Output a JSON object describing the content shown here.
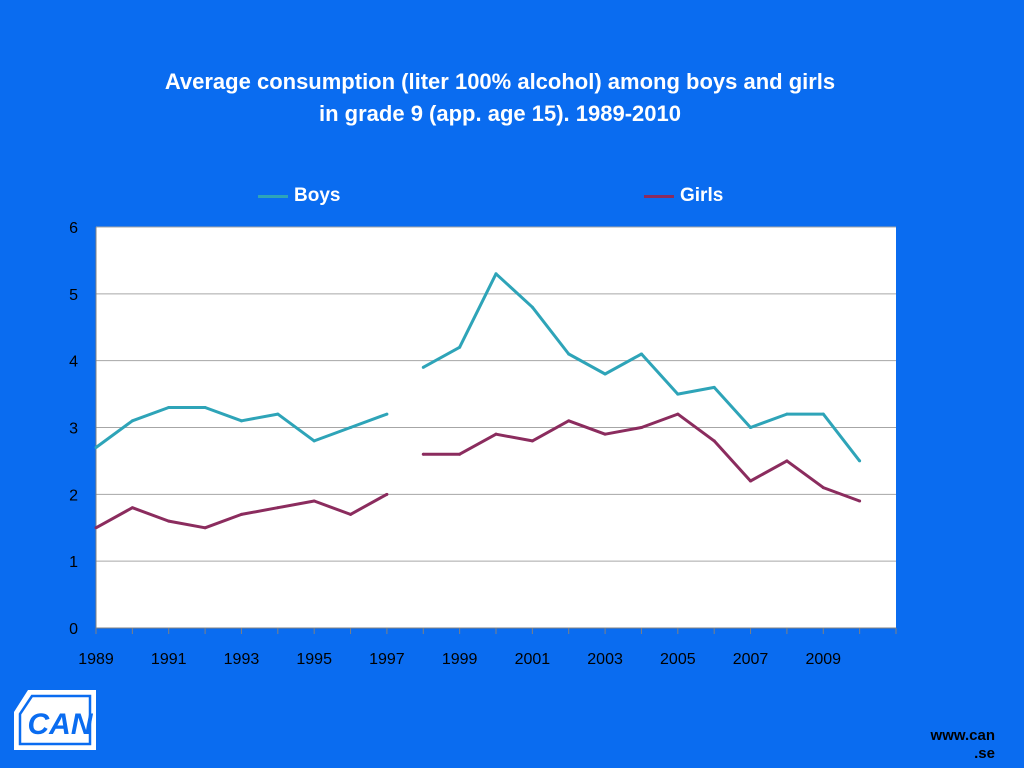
{
  "title": {
    "line1": "Average consumption (liter 100% alcohol) among boys and girls",
    "line2": "in grade 9 (app. age 15). 1989-2010"
  },
  "footer": {
    "url_line1": "www.can",
    "url_line2": ".se"
  },
  "colors": {
    "background": "#0a6cf0",
    "plot_area": "#ffffff",
    "boys": "#2ea4b8",
    "girls": "#8b2c5e",
    "gridline": "#a6a6a6"
  },
  "logo": {
    "icon": "can-logo-icon",
    "text": "CAN"
  },
  "chart_data": {
    "type": "line",
    "title": "Average consumption (liter 100% alcohol) among boys and girls in grade 9 (app. age 15). 1989-2010",
    "xlabel": "",
    "ylabel": "",
    "x": [
      1989,
      1990,
      1991,
      1992,
      1993,
      1994,
      1995,
      1996,
      1997,
      1998,
      1999,
      2000,
      2001,
      2002,
      2003,
      2004,
      2005,
      2006,
      2007,
      2008,
      2009,
      2010
    ],
    "x_tick_labels": [
      "1989",
      "1991",
      "1993",
      "1995",
      "1997",
      "1999",
      "2001",
      "2003",
      "2005",
      "2007",
      "2009"
    ],
    "y_ticks": [
      0,
      1,
      2,
      3,
      4,
      5,
      6
    ],
    "ylim": [
      0,
      6
    ],
    "grid": true,
    "legend_position": "top",
    "series": [
      {
        "name": "Boys",
        "values": [
          2.7,
          3.1,
          3.3,
          3.3,
          3.1,
          3.2,
          2.8,
          3.0,
          3.2,
          3.9,
          4.2,
          5.3,
          4.8,
          4.1,
          3.8,
          4.1,
          3.5,
          3.6,
          3.0,
          3.2,
          3.2,
          2.5
        ]
      },
      {
        "name": "Girls",
        "values": [
          1.5,
          1.8,
          1.6,
          1.5,
          1.7,
          1.8,
          1.9,
          1.7,
          2.0,
          2.6,
          2.6,
          2.9,
          2.8,
          3.1,
          2.9,
          3.0,
          3.2,
          2.8,
          2.2,
          2.5,
          2.1,
          1.9
        ]
      }
    ],
    "series_break_after": 1997
  }
}
